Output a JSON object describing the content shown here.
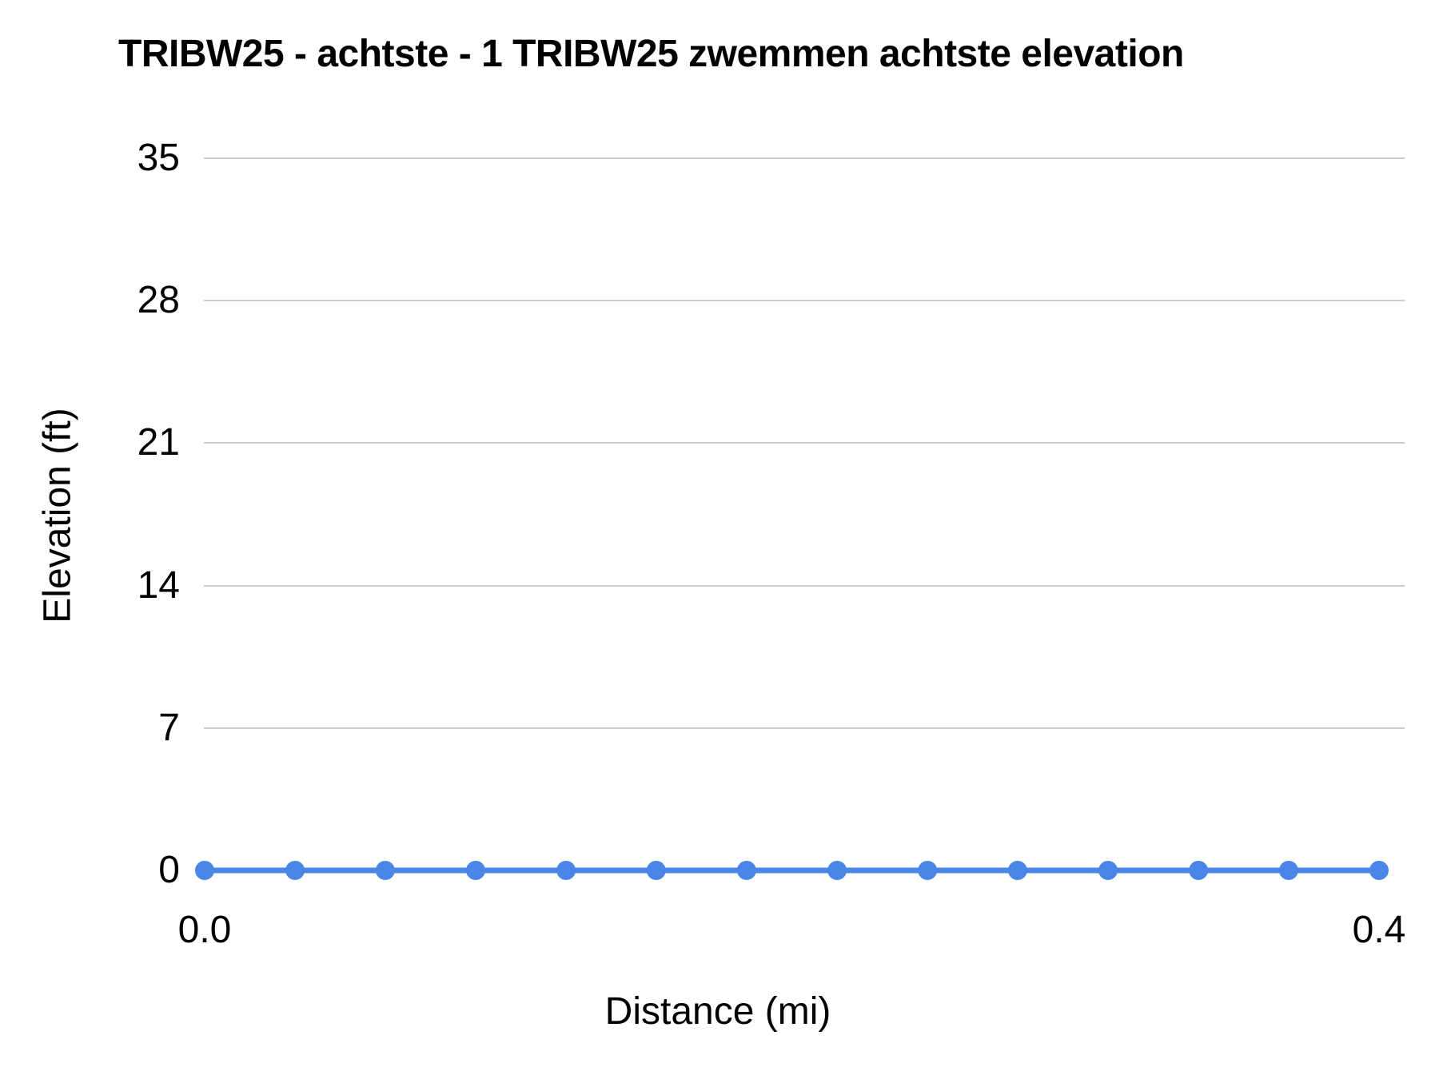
{
  "chart_data": {
    "type": "line",
    "title": "TRIBW25 - achtste - 1 TRIBW25 zwemmen achtste elevation",
    "xlabel": "Distance (mi)",
    "ylabel": "Elevation (ft)",
    "x": [
      0,
      0.0308,
      0.0615,
      0.0923,
      0.1231,
      0.1538,
      0.1846,
      0.2154,
      0.2462,
      0.2769,
      0.3077,
      0.3385,
      0.3692,
      0.4
    ],
    "series": [
      {
        "name": "elevation",
        "values": [
          0,
          0,
          0,
          0,
          0,
          0,
          0,
          0,
          0,
          0,
          0,
          0,
          0,
          0
        ]
      }
    ],
    "y_ticks": [
      0,
      7,
      14,
      21,
      28,
      35
    ],
    "x_tick_labels": [
      "0.0",
      "0.4"
    ],
    "xlim": [
      0,
      0.4
    ],
    "ylim": [
      0,
      35
    ],
    "grid": "horizontal-only",
    "legend": "none",
    "marker": "filled-circle",
    "colors": {
      "series": "#4a86e8",
      "gridline": "#cccccc",
      "text": "#000000",
      "background": "#ffffff"
    }
  }
}
